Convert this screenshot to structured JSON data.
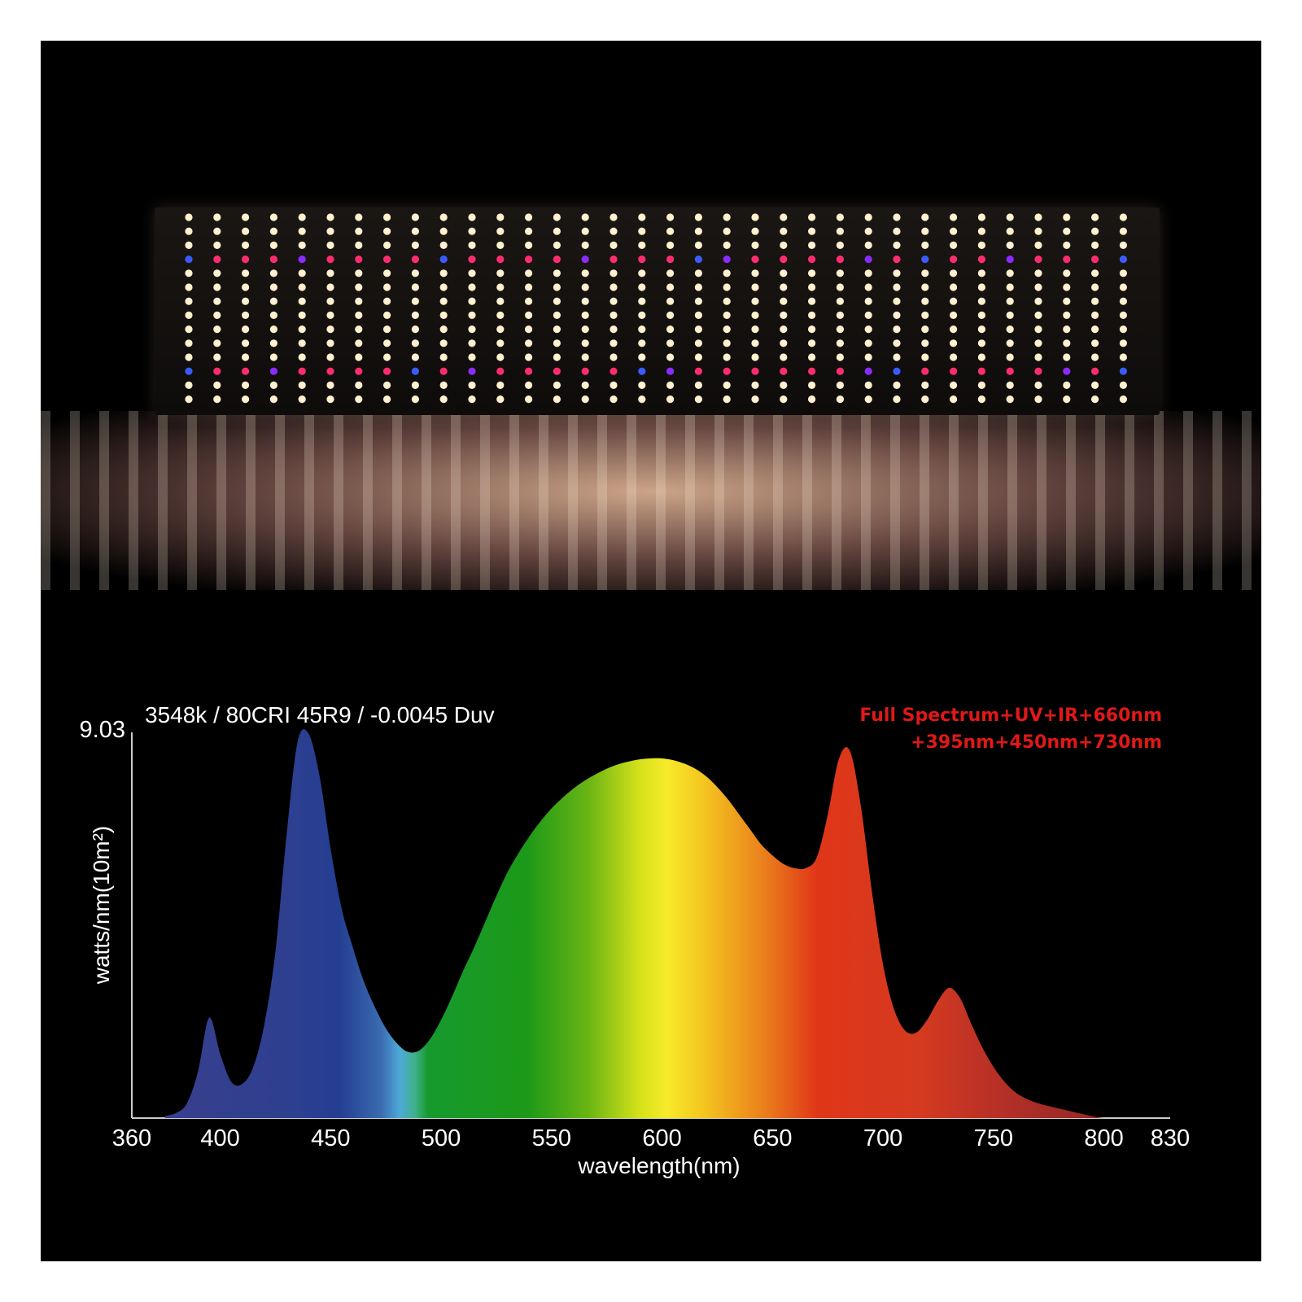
{
  "colors": {
    "background": "#000000",
    "text": "#ffffff",
    "spectrum_label": "#e01818"
  },
  "photo": {
    "subject": "led-grow-light-board"
  },
  "header": {
    "info": "3548k / 80CRI 45R9 / -0.0045 Duv",
    "spectrum_line1": "Full Spectrum+UV+IR+660nm",
    "spectrum_line2": "+395nm+450nm+730nm"
  },
  "chart_data": {
    "type": "area",
    "xlabel": "wavelength(nm)",
    "ylabel": "watts/nm(10m²)",
    "x_ticks": [
      "360",
      "400",
      "450",
      "500",
      "550",
      "600",
      "650",
      "700",
      "750",
      "800",
      "830"
    ],
    "xlim": [
      360,
      830
    ],
    "ylim": [
      0,
      9.03
    ],
    "y_tick_label": "9.03",
    "fill": "visible-spectrum-gradient",
    "x": [
      375,
      380,
      385,
      390,
      395,
      400,
      405,
      410,
      415,
      420,
      425,
      430,
      435,
      440,
      445,
      450,
      455,
      460,
      465,
      470,
      475,
      480,
      485,
      490,
      495,
      500,
      505,
      510,
      515,
      520,
      525,
      530,
      535,
      540,
      545,
      550,
      555,
      560,
      565,
      570,
      575,
      580,
      585,
      590,
      595,
      600,
      605,
      610,
      615,
      620,
      625,
      630,
      635,
      640,
      645,
      650,
      655,
      660,
      665,
      670,
      675,
      680,
      685,
      690,
      695,
      700,
      705,
      710,
      715,
      720,
      725,
      730,
      735,
      740,
      745,
      750,
      755,
      760,
      765,
      770,
      775,
      780,
      785,
      790,
      795,
      800,
      805
    ],
    "y": [
      0.05,
      0.12,
      0.35,
      1.1,
      2.35,
      1.5,
      0.85,
      0.8,
      1.2,
      2.2,
      3.9,
      6.6,
      8.8,
      9.0,
      8.0,
      6.3,
      4.9,
      4.0,
      3.2,
      2.6,
      2.1,
      1.75,
      1.55,
      1.58,
      1.85,
      2.3,
      2.85,
      3.45,
      4.0,
      4.6,
      5.2,
      5.75,
      6.2,
      6.6,
      6.95,
      7.25,
      7.5,
      7.72,
      7.9,
      8.05,
      8.18,
      8.28,
      8.35,
      8.4,
      8.42,
      8.42,
      8.38,
      8.3,
      8.18,
      8.0,
      7.75,
      7.45,
      7.1,
      6.75,
      6.4,
      6.15,
      5.95,
      5.85,
      5.85,
      6.1,
      7.1,
      8.4,
      8.6,
      7.3,
      5.3,
      3.6,
      2.55,
      2.05,
      2.0,
      2.3,
      2.75,
      3.05,
      2.8,
      2.2,
      1.65,
      1.2,
      0.85,
      0.6,
      0.45,
      0.35,
      0.28,
      0.22,
      0.16,
      0.1,
      0.04,
      0.0,
      0.0
    ]
  }
}
